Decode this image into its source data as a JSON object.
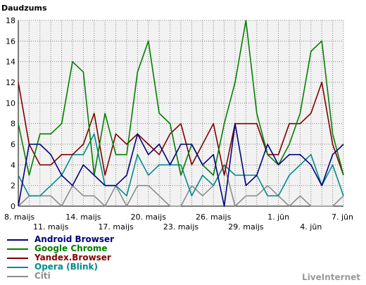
{
  "chart_data": {
    "type": "line",
    "ylabel": "Daudzums",
    "ylim": [
      0,
      18
    ],
    "yticks": [
      0,
      2,
      4,
      6,
      8,
      10,
      12,
      14,
      16,
      18
    ],
    "grid": true,
    "x_top_labels": [
      "8. maijs",
      "14. maijs",
      "20. maijs",
      "26. maijs",
      "1. jūn",
      "7. jūn"
    ],
    "x_top_indices": [
      0,
      6,
      12,
      18,
      24,
      30
    ],
    "x_bottom_labels": [
      "11. maijs",
      "17. maijs",
      "23. maijs",
      "29. maijs",
      "4. jūn"
    ],
    "x_bottom_indices": [
      3,
      9,
      15,
      21,
      27
    ],
    "x_count": 31,
    "series": [
      {
        "name": "Android Browser",
        "color": "#00007f",
        "values": [
          0,
          6,
          6,
          5,
          3,
          2,
          4,
          3,
          2,
          2,
          3,
          7,
          5,
          6,
          4,
          6,
          6,
          4,
          5,
          0,
          8,
          2,
          3,
          6,
          4,
          5,
          5,
          4,
          2,
          5,
          6
        ]
      },
      {
        "name": "Google Chrome",
        "color": "#007f00",
        "values": [
          8,
          3,
          7,
          7,
          8,
          14,
          13,
          3,
          9,
          5,
          5,
          13,
          16,
          9,
          8,
          3,
          6,
          4,
          3,
          8,
          12,
          18,
          9,
          5,
          4,
          6,
          9,
          15,
          16,
          7,
          3
        ]
      },
      {
        "name": "Yandex.Browser",
        "color": "#7f0000",
        "values": [
          12,
          6,
          4,
          4,
          5,
          5,
          6,
          9,
          3,
          7,
          6,
          7,
          6,
          5,
          7,
          8,
          4,
          6,
          8,
          3,
          8,
          8,
          8,
          5,
          5,
          8,
          8,
          9,
          12,
          6,
          3
        ]
      },
      {
        "name": "Opera (Blink)",
        "color": "#008b8b",
        "values": [
          3,
          1,
          1,
          2,
          3,
          5,
          5,
          7,
          2,
          2,
          1,
          5,
          3,
          4,
          4,
          4,
          1,
          3,
          2,
          4,
          3,
          3,
          3,
          1,
          1,
          3,
          4,
          5,
          2,
          4,
          1
        ]
      },
      {
        "name": "Citi",
        "color": "#8c8c8c",
        "values": [
          0,
          1,
          1,
          1,
          0,
          2,
          1,
          1,
          0,
          2,
          0,
          2,
          2,
          1,
          0,
          0,
          2,
          1,
          2,
          4,
          0,
          1,
          1,
          2,
          1,
          0,
          1,
          0,
          0,
          0,
          1
        ]
      }
    ]
  },
  "credit": "LiveInternet"
}
